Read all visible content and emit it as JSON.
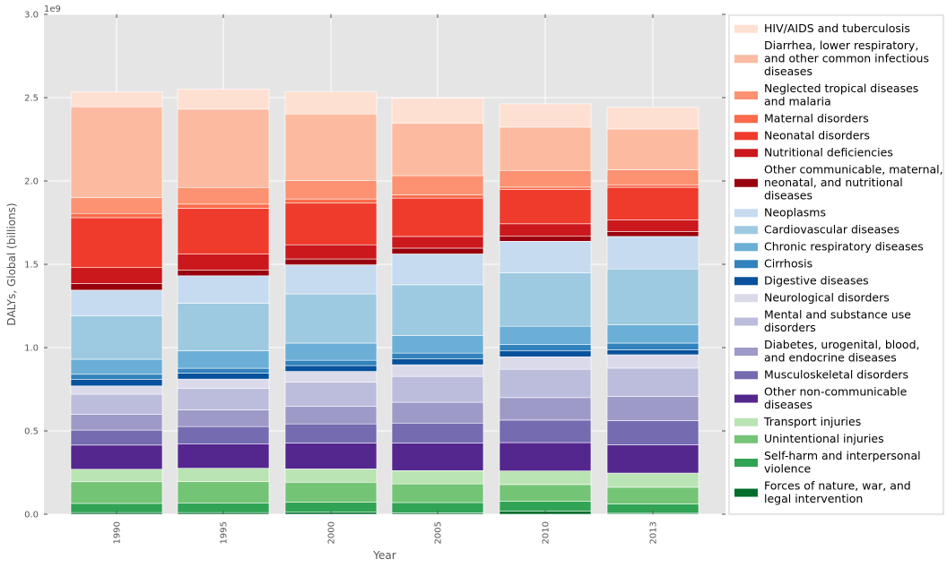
{
  "chart_data": {
    "type": "bar",
    "stacked": true,
    "xlabel": "Year",
    "ylabel": "DALYs, Global (billions)",
    "offset_text": "1e9",
    "ylim": [
      0,
      3000000000
    ],
    "yticks": [
      {
        "value": 0,
        "label": "0.0"
      },
      {
        "value": 500000000,
        "label": "0.5"
      },
      {
        "value": 1000000000,
        "label": "1.0"
      },
      {
        "value": 1500000000,
        "label": "1.5"
      },
      {
        "value": 2000000000,
        "label": "2.0"
      },
      {
        "value": 2500000000,
        "label": "2.5"
      },
      {
        "value": 3000000000,
        "label": "3.0"
      }
    ],
    "categories": [
      "1990",
      "1995",
      "2000",
      "2005",
      "2010",
      "2013"
    ],
    "grid": true,
    "legend_position": "right",
    "series": [
      {
        "name": "Forces of nature, war, and legal intervention",
        "color": "#006d2c",
        "values": [
          10000000,
          10000000,
          12000000,
          8000000,
          18000000,
          6000000
        ]
      },
      {
        "name": "Self-harm and interpersonal violence",
        "color": "#31a354",
        "values": [
          55000000,
          58000000,
          60000000,
          62000000,
          60000000,
          56000000
        ]
      },
      {
        "name": "Unintentional injuries",
        "color": "#74c476",
        "values": [
          130000000,
          128000000,
          120000000,
          112000000,
          100000000,
          100000000
        ]
      },
      {
        "name": "Transport injuries",
        "color": "#bae4b3",
        "values": [
          75000000,
          80000000,
          80000000,
          80000000,
          82000000,
          85000000
        ]
      },
      {
        "name": "Other non-communicable diseases",
        "color": "#54278f",
        "values": [
          145000000,
          145000000,
          155000000,
          165000000,
          170000000,
          170000000
        ]
      },
      {
        "name": "Musculoskeletal disorders",
        "color": "#756bb1",
        "values": [
          90000000,
          105000000,
          115000000,
          120000000,
          135000000,
          145000000
        ]
      },
      {
        "name": "Diabetes, urogenital, blood, and endocrine diseases",
        "color": "#9e9ac8",
        "values": [
          95000000,
          100000000,
          105000000,
          125000000,
          135000000,
          145000000
        ]
      },
      {
        "name": "Mental and substance use disorders",
        "color": "#bcbddc",
        "values": [
          120000000,
          130000000,
          145000000,
          155000000,
          170000000,
          170000000
        ]
      },
      {
        "name": "Neurological disorders",
        "color": "#dadaeb",
        "values": [
          50000000,
          55000000,
          65000000,
          70000000,
          75000000,
          80000000
        ]
      },
      {
        "name": "Digestive diseases",
        "color": "#08519c",
        "values": [
          40000000,
          35000000,
          35000000,
          35000000,
          35000000,
          30000000
        ]
      },
      {
        "name": "Cirrhosis",
        "color": "#3182bd",
        "values": [
          30000000,
          30000000,
          32000000,
          35000000,
          38000000,
          40000000
        ]
      },
      {
        "name": "Chronic respiratory diseases",
        "color": "#6baed6",
        "values": [
          90000000,
          105000000,
          103000000,
          105000000,
          110000000,
          110000000
        ]
      },
      {
        "name": "Cardiovascular diseases",
        "color": "#9ecae1",
        "values": [
          260000000,
          285000000,
          295000000,
          305000000,
          320000000,
          335000000
        ]
      },
      {
        "name": "Neoplasms",
        "color": "#c6dbef",
        "values": [
          155000000,
          165000000,
          175000000,
          185000000,
          190000000,
          195000000
        ]
      },
      {
        "name": "Other communicable, maternal, neonatal, and nutritional diseases",
        "color": "#99000d",
        "values": [
          40000000,
          35000000,
          35000000,
          35000000,
          30000000,
          30000000
        ]
      },
      {
        "name": "Nutritional deficiencies",
        "color": "#cb181d",
        "values": [
          95000000,
          95000000,
          85000000,
          70000000,
          75000000,
          70000000
        ]
      },
      {
        "name": "Neonatal disorders",
        "color": "#ef3b2c",
        "values": [
          300000000,
          275000000,
          250000000,
          230000000,
          205000000,
          195000000
        ]
      },
      {
        "name": "Maternal disorders",
        "color": "#fb6a4a",
        "values": [
          25000000,
          25000000,
          25000000,
          20000000,
          15000000,
          15000000
        ]
      },
      {
        "name": "Neglected tropical diseases and malaria",
        "color": "#fc9272",
        "values": [
          95000000,
          100000000,
          110000000,
          115000000,
          100000000,
          90000000
        ]
      },
      {
        "name": "Diarrhea, lower respiratory, and other common infectious diseases",
        "color": "#fcbba1",
        "values": [
          545000000,
          470000000,
          400000000,
          315000000,
          260000000,
          245000000
        ]
      },
      {
        "name": "HIV/AIDS and tuberculosis",
        "color": "#fee0d2",
        "values": [
          90000000,
          120000000,
          135000000,
          150000000,
          140000000,
          130000000
        ]
      }
    ]
  }
}
